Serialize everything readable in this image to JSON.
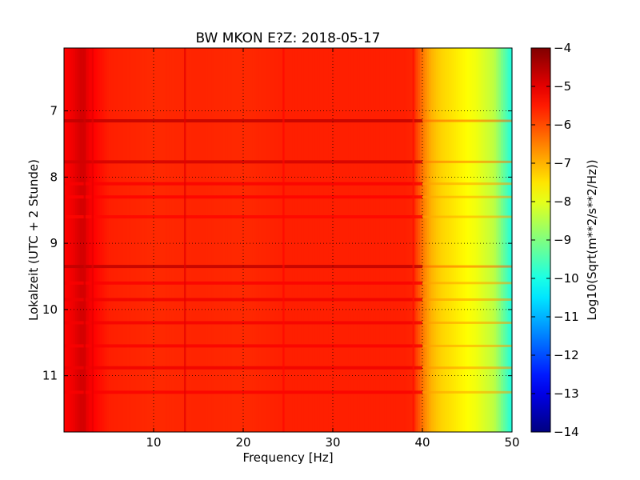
{
  "chart_data": {
    "type": "heatmap",
    "title": "BW MKON E?Z: 2018-05-17",
    "xlabel": "Frequency [Hz]",
    "ylabel": "Lokalzeit (UTC + 2 Stunde)",
    "xlim": [
      0,
      50
    ],
    "ylim": [
      11.85,
      6.05
    ],
    "y_inverted": true,
    "xticks": [
      10,
      20,
      30,
      40,
      50
    ],
    "yticks": [
      7,
      8,
      9,
      10,
      11
    ],
    "grid": true,
    "colormap": "jet",
    "colorbar": {
      "label": "Log10(Sqrt(m**2/s**2/Hz))",
      "range": [
        -14,
        -4
      ],
      "ticks": [
        -4,
        -5,
        -6,
        -7,
        -8,
        -9,
        -10,
        -11,
        -12,
        -13,
        -14
      ]
    },
    "base_profile": {
      "frequency": [
        0,
        1,
        2,
        3,
        5,
        10,
        15,
        20,
        25,
        30,
        35,
        38,
        39,
        40,
        41,
        42,
        44,
        46,
        48,
        49,
        50
      ],
      "value": [
        -5.3,
        -5.1,
        -4.8,
        -5.2,
        -5.55,
        -5.65,
        -5.6,
        -5.65,
        -5.55,
        -5.55,
        -5.55,
        -5.55,
        -5.6,
        -6.4,
        -7.0,
        -7.3,
        -7.6,
        -7.9,
        -8.4,
        -9.2,
        -10.0
      ]
    },
    "vertical_lines": [
      {
        "frequency": 2.3,
        "value": -4.8
      },
      {
        "frequency": 3.2,
        "value": -5.0
      },
      {
        "frequency": 13.5,
        "value": -5.0
      },
      {
        "frequency": 24.5,
        "value": -5.3
      },
      {
        "frequency": 39.0,
        "value": -5.4
      }
    ],
    "horizontal_bands": [
      {
        "time": 7.15,
        "value": -4.6
      },
      {
        "time": 7.77,
        "value": -4.8
      },
      {
        "time": 8.1,
        "value": -5.2
      },
      {
        "time": 8.3,
        "value": -5.25
      },
      {
        "time": 8.6,
        "value": -5.3
      },
      {
        "time": 9.35,
        "value": -4.6
      },
      {
        "time": 9.6,
        "value": -5.2
      },
      {
        "time": 9.85,
        "value": -5.1
      },
      {
        "time": 10.2,
        "value": -5.15
      },
      {
        "time": 10.55,
        "value": -5.2
      },
      {
        "time": 10.88,
        "value": -5.1
      },
      {
        "time": 11.25,
        "value": -5.2
      }
    ]
  }
}
